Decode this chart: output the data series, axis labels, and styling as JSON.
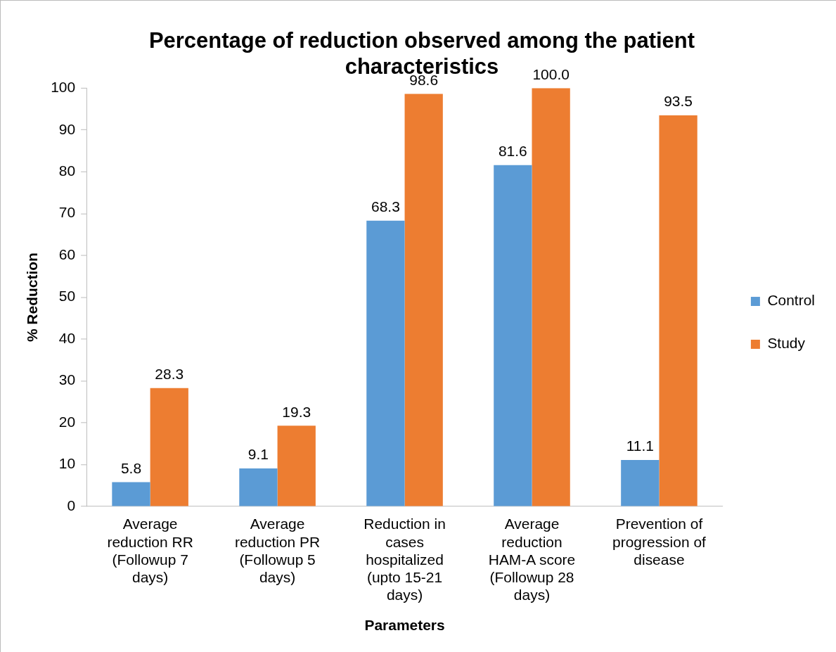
{
  "chart_data": {
    "type": "bar",
    "title": "Percentage of reduction observed among the patient characteristics",
    "xlabel": "Parameters",
    "ylabel": "% Reduction",
    "categories": [
      "Average reduction RR (Followup 7 days)",
      "Average reduction PR (Followup 5 days)",
      "Reduction in cases hospitalized (upto 15-21 days)",
      "Average reduction HAM-A score (Followup 28 days)",
      "Prevention of progression of disease"
    ],
    "series": [
      {
        "name": "Control",
        "color": "#5b9bd5",
        "values": [
          5.8,
          9.1,
          68.3,
          81.6,
          11.1
        ],
        "value_labels": [
          "5.8",
          "9.1",
          "68.3",
          "81.6",
          "11.1"
        ]
      },
      {
        "name": "Study",
        "color": "#ed7d31",
        "values": [
          28.3,
          19.3,
          98.6,
          100,
          93.5
        ],
        "value_labels": [
          "28.3",
          "19.3",
          "98.6",
          "100.0",
          "93.5"
        ]
      }
    ],
    "ylim": [
      0,
      100
    ],
    "yticks": [
      0,
      10,
      20,
      30,
      40,
      50,
      60,
      70,
      80,
      90,
      100
    ],
    "grid": false,
    "legend": "right"
  }
}
